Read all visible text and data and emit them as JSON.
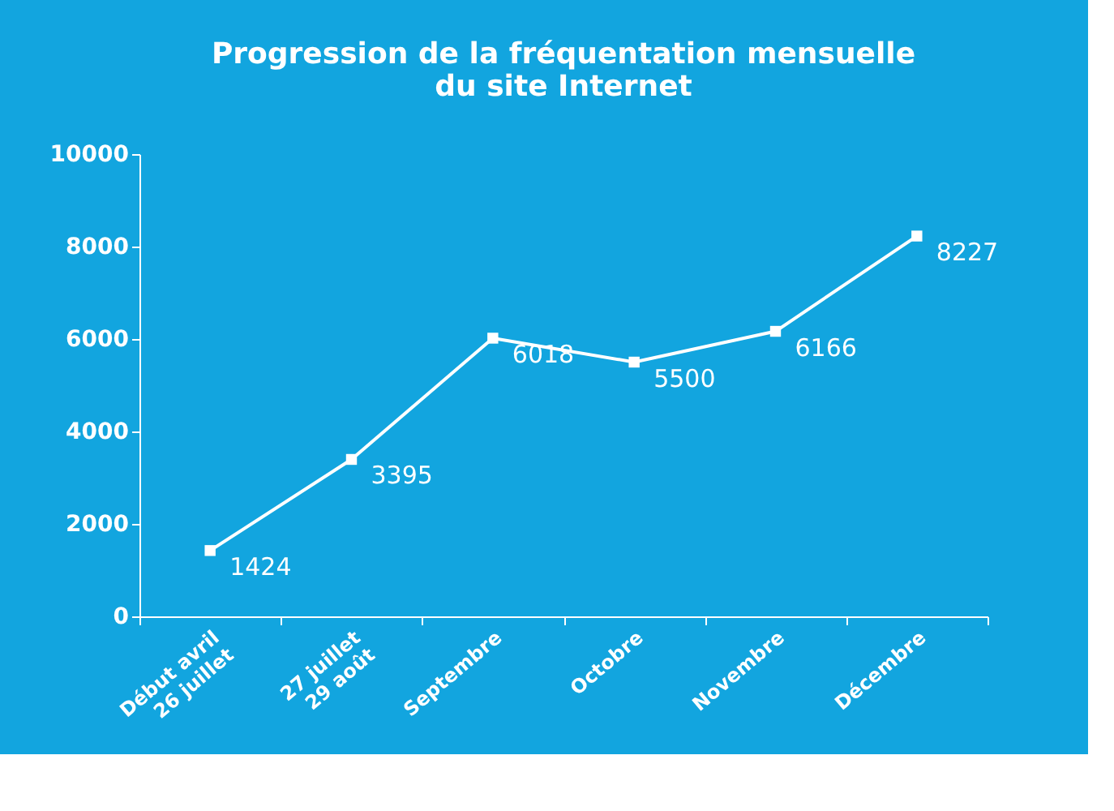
{
  "chart_data": {
    "type": "line",
    "title": "Progression de la fréquentation mensuelle\ndu site Internet",
    "categories": [
      "Début avril\n26 juillet",
      "27 juillet\n29 août",
      "Septembre",
      "Octobre",
      "Novembre",
      "Décembre"
    ],
    "series": [
      {
        "color": "#ffffff",
        "values": [
          1424,
          3395,
          6018,
          5500,
          6166,
          8227
        ]
      }
    ],
    "ylim": [
      0,
      10000
    ],
    "yticks": [
      0,
      2000,
      4000,
      6000,
      8000,
      10000
    ],
    "grid": false,
    "legend": false,
    "marker": "square",
    "line_style": "solid",
    "data_labels": true
  }
}
